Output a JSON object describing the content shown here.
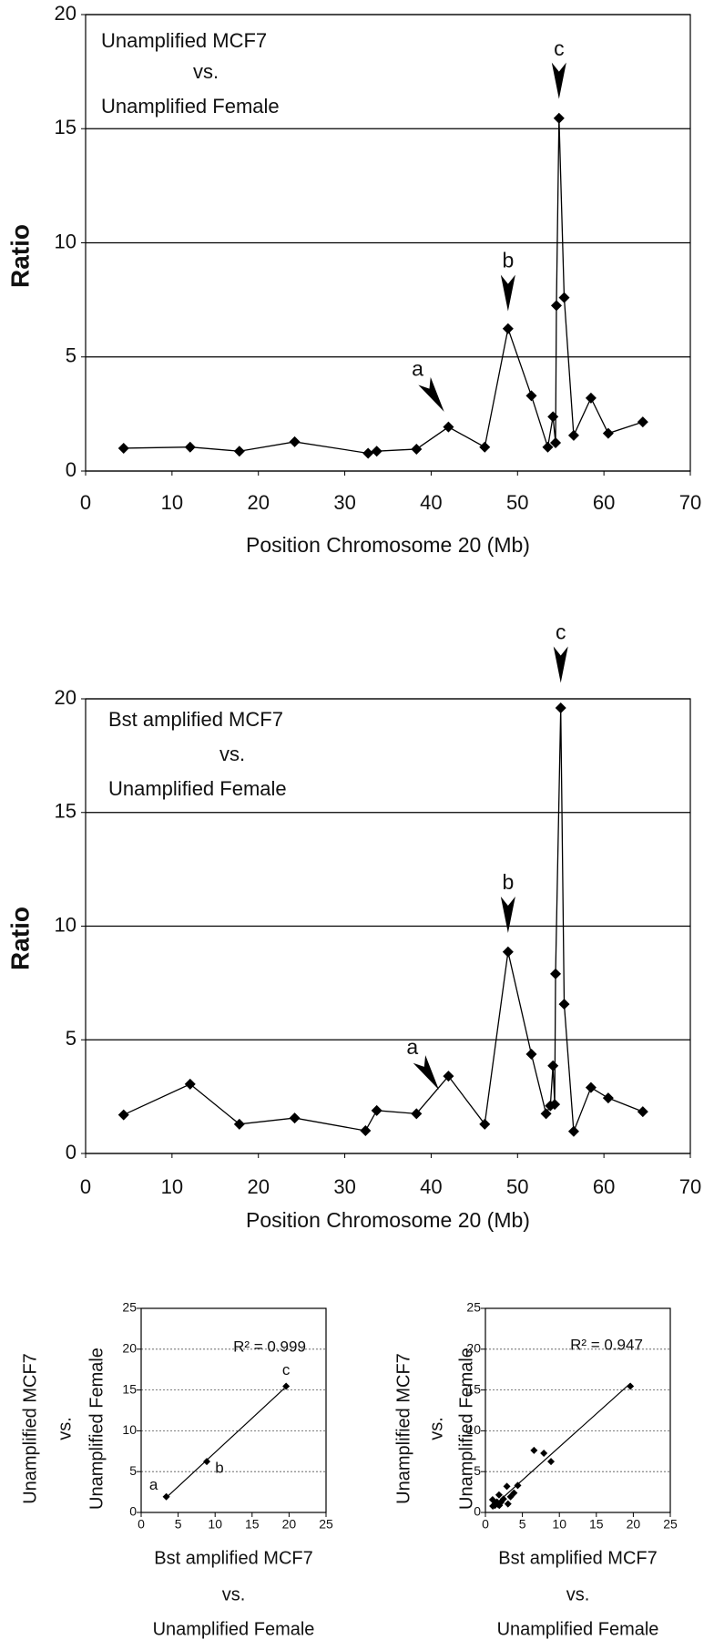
{
  "chart_data": [
    {
      "type": "line",
      "title": [
        "Unamplified MCF7",
        "vs.",
        "Unamplified Female"
      ],
      "x": [
        4.4,
        12.1,
        17.8,
        24.2,
        32.7,
        33.7,
        38.3,
        42.0,
        46.2,
        48.9,
        51.6,
        53.5,
        54.1,
        54.4,
        54.5,
        54.8,
        55.4,
        56.5,
        58.5,
        60.5,
        64.5
      ],
      "values": [
        1.0,
        1.05,
        0.87,
        1.28,
        0.78,
        0.87,
        0.96,
        1.93,
        1.05,
        6.24,
        3.3,
        1.05,
        2.38,
        1.24,
        7.25,
        15.46,
        7.6,
        1.56,
        3.2,
        1.65,
        2.15
      ],
      "color": "#000000",
      "xlim": [
        0,
        70
      ],
      "xticks": [
        0,
        10,
        20,
        30,
        40,
        50,
        60,
        70
      ],
      "ylim": [
        0,
        20
      ],
      "yticks": [
        0,
        5,
        10,
        15,
        20
      ],
      "grid": true,
      "xlabel": "Position Chromosome 20 (Mb)",
      "ylabel": "Ratio",
      "annotations": [
        "a",
        "b",
        "c"
      ]
    },
    {
      "type": "line",
      "title": [
        "Bst amplified MCF7",
        "vs.",
        "Unamplified Female"
      ],
      "x": [
        4.4,
        12.1,
        17.8,
        24.2,
        32.4,
        33.7,
        38.3,
        42.0,
        46.2,
        48.9,
        51.6,
        53.3,
        53.8,
        54.1,
        54.3,
        54.4,
        55.0,
        55.4,
        56.5,
        58.5,
        60.5,
        64.5
      ],
      "values": [
        1.7,
        3.05,
        1.29,
        1.56,
        1.0,
        1.89,
        1.75,
        3.4,
        1.29,
        8.87,
        4.37,
        1.75,
        2.1,
        3.86,
        2.16,
        7.9,
        19.6,
        6.57,
        0.97,
        2.9,
        2.44,
        1.84
      ],
      "color": "#000000",
      "xlim": [
        0,
        70
      ],
      "xticks": [
        0,
        10,
        20,
        30,
        40,
        50,
        60,
        70
      ],
      "ylim": [
        0,
        20
      ],
      "yticks": [
        0,
        5,
        10,
        15,
        20
      ],
      "grid": true,
      "xlabel": "Position Chromosome 20 (Mb)",
      "ylabel": "Ratio",
      "annotations": [
        "a",
        "b",
        "c"
      ]
    },
    {
      "type": "scatter",
      "x": [
        3.4,
        8.87,
        19.6
      ],
      "values": [
        1.93,
        6.24,
        15.46
      ],
      "point_labels": [
        "a",
        "b",
        "c"
      ],
      "annotation": "R² = 0.999",
      "trendline": true,
      "color": "#000000",
      "xlim": [
        0,
        25
      ],
      "xticks": [
        0,
        5,
        10,
        15,
        20,
        25
      ],
      "ylim": [
        0,
        25
      ],
      "yticks": [
        0,
        5,
        10,
        15,
        20,
        25
      ],
      "grid": true,
      "xlabel": [
        "Bst amplified MCF7",
        "vs.",
        "Unamplified Female"
      ],
      "ylabel": [
        "Unamplified MCF7",
        "vs.",
        "Unamplified Female"
      ]
    },
    {
      "type": "scatter",
      "x": [
        1.7,
        3.05,
        1.29,
        1.56,
        1.0,
        1.89,
        1.75,
        3.4,
        1.29,
        8.87,
        4.37,
        1.75,
        2.1,
        3.86,
        7.9,
        19.6,
        6.57,
        0.97,
        2.9,
        2.44,
        1.84
      ],
      "values": [
        1.0,
        1.05,
        0.87,
        1.28,
        0.78,
        0.87,
        0.96,
        1.93,
        1.05,
        6.24,
        3.3,
        1.05,
        1.24,
        2.38,
        7.25,
        15.46,
        7.6,
        1.56,
        3.2,
        1.65,
        2.15
      ],
      "annotation": "R² = 0.947",
      "trendline": true,
      "color": "#000000",
      "xlim": [
        0,
        25
      ],
      "xticks": [
        0,
        5,
        10,
        15,
        20,
        25
      ],
      "ylim": [
        0,
        25
      ],
      "yticks": [
        0,
        5,
        10,
        15,
        20,
        25
      ],
      "grid": true,
      "xlabel": [
        "Bst amplified MCF7",
        "vs.",
        "Unamplified Female"
      ],
      "ylabel": [
        "Unamplified MCF7",
        "vs.",
        "Unamplified Female"
      ]
    }
  ]
}
